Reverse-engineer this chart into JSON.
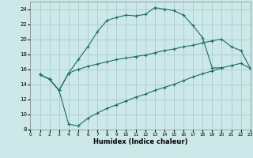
{
  "xlabel": "Humidex (Indice chaleur)",
  "bg_color": "#cce8e8",
  "grid_color": "#aacccc",
  "line_color": "#1a6b6b",
  "xlim": [
    0,
    23
  ],
  "ylim": [
    8,
    25
  ],
  "xticks": [
    0,
    1,
    2,
    3,
    4,
    5,
    6,
    7,
    8,
    9,
    10,
    11,
    12,
    13,
    14,
    15,
    16,
    17,
    18,
    19,
    20,
    21,
    22,
    23
  ],
  "yticks": [
    8,
    10,
    12,
    14,
    16,
    18,
    20,
    22,
    24
  ],
  "curve1_x": [
    1,
    2,
    3,
    4,
    5,
    6,
    7,
    8,
    9,
    10,
    11,
    12,
    13,
    14,
    15,
    16,
    17,
    18,
    19,
    20
  ],
  "curve1_y": [
    15.3,
    14.7,
    13.2,
    15.5,
    17.3,
    19.0,
    21.0,
    22.5,
    22.9,
    23.2,
    23.1,
    23.3,
    24.2,
    24.0,
    23.8,
    23.2,
    21.8,
    20.2,
    16.2,
    16.2
  ],
  "curve2_x": [
    1,
    2,
    3,
    4,
    5,
    6,
    7,
    8,
    9,
    10,
    11,
    12,
    13,
    14,
    15,
    16,
    17,
    18,
    19,
    20,
    21,
    22,
    23
  ],
  "curve2_y": [
    15.3,
    14.7,
    13.2,
    15.5,
    16.0,
    16.4,
    16.7,
    17.0,
    17.3,
    17.5,
    17.7,
    17.9,
    18.2,
    18.5,
    18.7,
    19.0,
    19.2,
    19.5,
    19.8,
    20.0,
    19.0,
    18.5,
    16.1
  ],
  "curve3_x": [
    1,
    2,
    3,
    4,
    5,
    6,
    7,
    8,
    9,
    10,
    11,
    12,
    13,
    14,
    15,
    16,
    17,
    18,
    19,
    20,
    21,
    22,
    23
  ],
  "curve3_y": [
    15.3,
    14.7,
    13.2,
    8.7,
    8.5,
    9.5,
    10.2,
    10.8,
    11.3,
    11.8,
    12.3,
    12.7,
    13.2,
    13.6,
    14.0,
    14.5,
    15.0,
    15.4,
    15.8,
    16.2,
    16.5,
    16.8,
    16.1
  ]
}
